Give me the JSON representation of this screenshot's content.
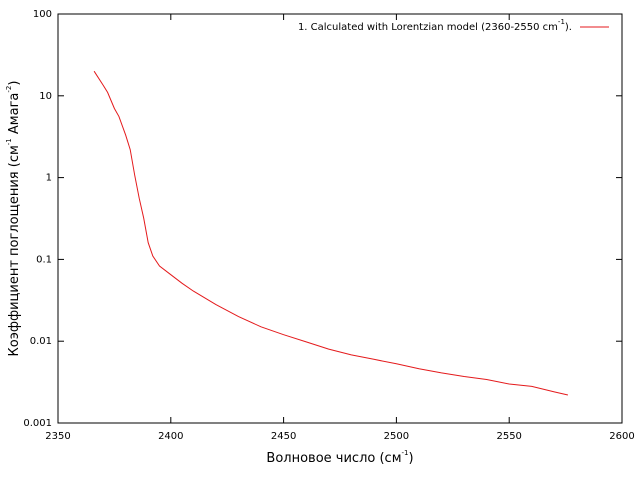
{
  "chart_data": {
    "type": "line",
    "xlabel": [
      "Волновое число (см",
      "-1",
      ")"
    ],
    "ylabel": [
      "Коэффициент поглощения (см",
      "-1",
      " Амага",
      "-2",
      ")"
    ],
    "x": [
      2366,
      2370,
      2372,
      2375,
      2377,
      2380,
      2382,
      2384,
      2386,
      2388,
      2390,
      2392,
      2395,
      2400,
      2405,
      2410,
      2420,
      2430,
      2440,
      2450,
      2460,
      2470,
      2480,
      2490,
      2500,
      2510,
      2520,
      2530,
      2540,
      2550,
      2560,
      2570,
      2576
    ],
    "series": [
      {
        "name": [
          "1. Calculated with Lorentzian model (2360-2550 cm",
          "-1",
          ")."
        ],
        "color": "#e41a1c",
        "values": [
          20,
          13.5,
          11,
          7,
          5.6,
          3.3,
          2.2,
          1.07,
          0.56,
          0.32,
          0.16,
          0.11,
          0.083,
          0.065,
          0.051,
          0.041,
          0.028,
          0.02,
          0.015,
          0.012,
          0.0098,
          0.008,
          0.0068,
          0.006,
          0.0053,
          0.0046,
          0.0041,
          0.0037,
          0.0034,
          0.003,
          0.0028,
          0.0024,
          0.0022
        ]
      }
    ],
    "xlim": [
      2350,
      2600
    ],
    "xticks": [
      2350,
      2400,
      2450,
      2500,
      2550,
      2600
    ],
    "ylim": [
      0.001,
      100
    ],
    "yticks": [
      0.001,
      0.01,
      0.1,
      1,
      10,
      100
    ],
    "ylog": true,
    "grid": false,
    "legend": "upper right"
  }
}
